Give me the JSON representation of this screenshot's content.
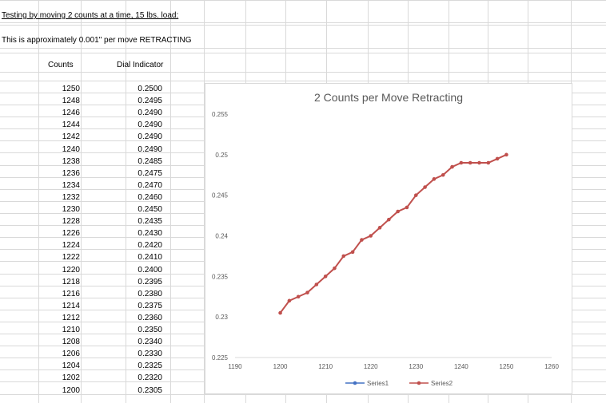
{
  "sheet": {
    "title_line": "Testing by moving 2 counts at a time, 15 lbs. load:",
    "note_line": "This is approximately 0.001\" per move RETRACTING",
    "col_counts_header": "Counts",
    "col_dial_header": "Dial Indicator",
    "rows": [
      {
        "counts": "1250",
        "dial": "0.2500"
      },
      {
        "counts": "1248",
        "dial": "0.2495"
      },
      {
        "counts": "1246",
        "dial": "0.2490"
      },
      {
        "counts": "1244",
        "dial": "0.2490"
      },
      {
        "counts": "1242",
        "dial": "0.2490"
      },
      {
        "counts": "1240",
        "dial": "0.2490"
      },
      {
        "counts": "1238",
        "dial": "0.2485"
      },
      {
        "counts": "1236",
        "dial": "0.2475"
      },
      {
        "counts": "1234",
        "dial": "0.2470"
      },
      {
        "counts": "1232",
        "dial": "0.2460"
      },
      {
        "counts": "1230",
        "dial": "0.2450"
      },
      {
        "counts": "1228",
        "dial": "0.2435"
      },
      {
        "counts": "1226",
        "dial": "0.2430"
      },
      {
        "counts": "1224",
        "dial": "0.2420"
      },
      {
        "counts": "1222",
        "dial": "0.2410"
      },
      {
        "counts": "1220",
        "dial": "0.2400"
      },
      {
        "counts": "1218",
        "dial": "0.2395"
      },
      {
        "counts": "1216",
        "dial": "0.2380"
      },
      {
        "counts": "1214",
        "dial": "0.2375"
      },
      {
        "counts": "1212",
        "dial": "0.2360"
      },
      {
        "counts": "1210",
        "dial": "0.2350"
      },
      {
        "counts": "1208",
        "dial": "0.2340"
      },
      {
        "counts": "1206",
        "dial": "0.2330"
      },
      {
        "counts": "1204",
        "dial": "0.2325"
      },
      {
        "counts": "1202",
        "dial": "0.2320"
      },
      {
        "counts": "1200",
        "dial": "0.2305"
      }
    ]
  },
  "chart_data": {
    "type": "scatter",
    "title": "2 Counts per Move Retracting",
    "xlabel": "",
    "ylabel": "",
    "xlim": [
      1190,
      1260
    ],
    "ylim": [
      0.225,
      0.255
    ],
    "x_ticks": [
      "1190",
      "1200",
      "1210",
      "1220",
      "1230",
      "1240",
      "1250",
      "1260"
    ],
    "y_ticks": [
      "0.225",
      "0.23",
      "0.235",
      "0.24",
      "0.245",
      "0.25",
      "0.255"
    ],
    "grid": false,
    "legend_position": "bottom",
    "series": [
      {
        "name": "Series1",
        "color": "#4472c4",
        "x": [],
        "y": []
      },
      {
        "name": "Series2",
        "color": "#c0504d",
        "x": [
          1200,
          1202,
          1204,
          1206,
          1208,
          1210,
          1212,
          1214,
          1216,
          1218,
          1220,
          1222,
          1224,
          1226,
          1228,
          1230,
          1232,
          1234,
          1236,
          1238,
          1240,
          1242,
          1244,
          1246,
          1248,
          1250
        ],
        "y": [
          0.2305,
          0.232,
          0.2325,
          0.233,
          0.234,
          0.235,
          0.236,
          0.2375,
          0.238,
          0.2395,
          0.24,
          0.241,
          0.242,
          0.243,
          0.2435,
          0.245,
          0.246,
          0.247,
          0.2475,
          0.2485,
          0.249,
          0.249,
          0.249,
          0.249,
          0.2495,
          0.25
        ]
      }
    ]
  }
}
